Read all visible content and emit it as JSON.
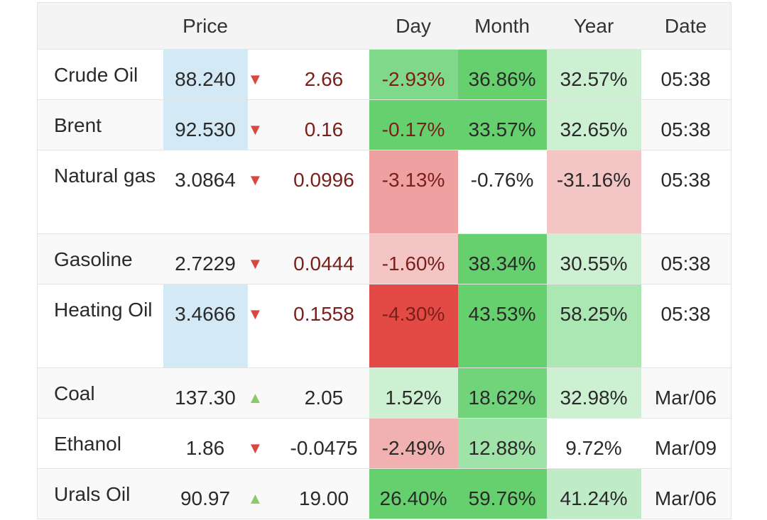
{
  "headers": {
    "name": "",
    "price": "Price",
    "change": "",
    "day": "Day",
    "month": "Month",
    "year": "Year",
    "date": "Date"
  },
  "arrows": {
    "down": "▼",
    "up": "▲"
  },
  "rows": [
    {
      "name": "Crude Oil",
      "price": "88.240",
      "price_bg": "#d3e9f5",
      "dir": "down",
      "change": "2.66",
      "change_color": "#7a1f1a",
      "day": "-2.93%",
      "day_bg": "#80d98a",
      "day_color": "#7a1f1a",
      "month": "36.86%",
      "month_bg": "#66cf6e",
      "year": "32.57%",
      "year_bg": "#cdf0d3",
      "date": "05:38"
    },
    {
      "name": "Brent",
      "price": "92.530",
      "price_bg": "#d3e9f5",
      "dir": "down",
      "change": "0.16",
      "change_color": "#7a1f1a",
      "day": "-0.17%",
      "day_bg": "#66cf6e",
      "day_color": "#7a1f1a",
      "month": "33.57%",
      "month_bg": "#66cf6e",
      "year": "32.65%",
      "year_bg": "#cdf0d3",
      "date": "05:38"
    },
    {
      "name": "Natural gas",
      "price": "3.0864",
      "price_bg": "",
      "dir": "down",
      "change": "0.0996",
      "change_color": "#7a1f1a",
      "day": "-3.13%",
      "day_bg": "#efa0a1",
      "day_color": "#7a1f1a",
      "month": "-0.76%",
      "month_bg": "",
      "year": "-31.16%",
      "year_bg": "#f3c5c5",
      "date": "05:38"
    },
    {
      "name": "Gasoline",
      "price": "2.7229",
      "price_bg": "",
      "dir": "down",
      "change": "0.0444",
      "change_color": "#7a1f1a",
      "day": "-1.60%",
      "day_bg": "#f3c5c5",
      "day_color": "#7a1f1a",
      "month": "38.34%",
      "month_bg": "#66cf6e",
      "year": "30.55%",
      "year_bg": "#cdf0d3",
      "date": "05:38"
    },
    {
      "name": "Heating Oil",
      "price": "3.4666",
      "price_bg": "#d3e9f5",
      "dir": "down",
      "change": "0.1558",
      "change_color": "#7a1f1a",
      "day": "-4.30%",
      "day_bg": "#e44a45",
      "day_color": "#7a1f1a",
      "month": "43.53%",
      "month_bg": "#66cf6e",
      "year": "58.25%",
      "year_bg": "#abe7b3",
      "date": "05:38"
    },
    {
      "name": "Coal",
      "price": "137.30",
      "price_bg": "",
      "dir": "up",
      "change": "2.05",
      "change_color": "#2a2a2a",
      "day": "1.52%",
      "day_bg": "#cdf0d3",
      "day_color": "#2a2a2a",
      "month": "18.62%",
      "month_bg": "#71d47a",
      "year": "32.98%",
      "year_bg": "#cdf0d3",
      "date": "Mar/06"
    },
    {
      "name": "Ethanol",
      "price": "1.86",
      "price_bg": "",
      "dir": "down",
      "change": "-0.0475",
      "change_color": "#2a2a2a",
      "day": "-2.49%",
      "day_bg": "#f2b1b1",
      "day_color": "#2a2a2a",
      "month": "12.88%",
      "month_bg": "#a0e3a8",
      "year": "9.72%",
      "year_bg": "",
      "date": "Mar/09"
    },
    {
      "name": "Urals Oil",
      "price": "90.97",
      "price_bg": "",
      "dir": "up",
      "change": "19.00",
      "change_color": "#2a2a2a",
      "day": "26.40%",
      "day_bg": "#66cf6e",
      "day_color": "#2a2a2a",
      "month": "59.76%",
      "month_bg": "#66cf6e",
      "year": "41.24%",
      "year_bg": "#bfecc7",
      "date": "Mar/06"
    }
  ]
}
